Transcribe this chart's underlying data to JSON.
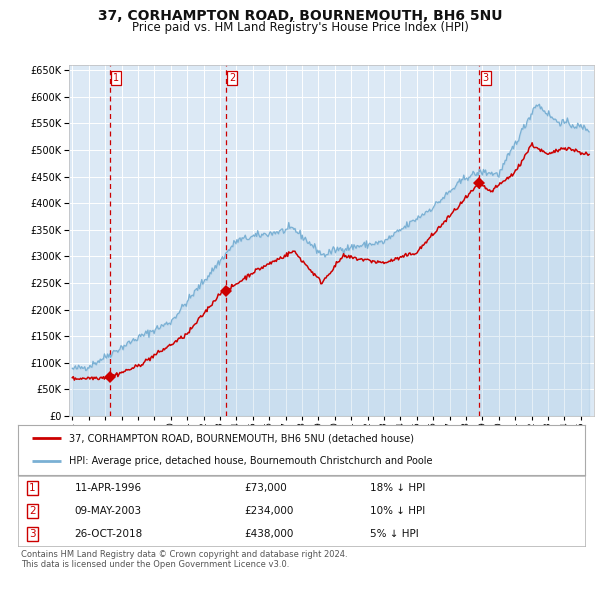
{
  "title": "37, CORHAMPTON ROAD, BOURNEMOUTH, BH6 5NU",
  "subtitle": "Price paid vs. HM Land Registry's House Price Index (HPI)",
  "title_fontsize": 10,
  "subtitle_fontsize": 8.5,
  "bg_color": "#dce9f5",
  "grid_color": "#ffffff",
  "purchases": [
    {
      "date_year": 1996.28,
      "price": 73000,
      "label": "1"
    },
    {
      "date_year": 2003.36,
      "price": 234000,
      "label": "2"
    },
    {
      "date_year": 2018.82,
      "price": 438000,
      "label": "3"
    }
  ],
  "vline_dates": [
    1996.28,
    2003.36,
    2018.82
  ],
  "vline_color": "#cc0000",
  "hpi_line_color": "#7ab0d4",
  "price_line_color": "#cc0000",
  "purchase_marker_color": "#cc0000",
  "ylim": [
    0,
    660000
  ],
  "ytick_step": 50000,
  "xlim_start": 1993.8,
  "xlim_end": 2025.8,
  "legend_entries": [
    "37, CORHAMPTON ROAD, BOURNEMOUTH, BH6 5NU (detached house)",
    "HPI: Average price, detached house, Bournemouth Christchurch and Poole"
  ],
  "table_rows": [
    {
      "num": "1",
      "date": "11-APR-1996",
      "price": "£73,000",
      "hpi": "18% ↓ HPI"
    },
    {
      "num": "2",
      "date": "09-MAY-2003",
      "price": "£234,000",
      "hpi": "10% ↓ HPI"
    },
    {
      "num": "3",
      "date": "26-OCT-2018",
      "price": "£438,000",
      "hpi": "5% ↓ HPI"
    }
  ],
  "footer": "Contains HM Land Registry data © Crown copyright and database right 2024.\nThis data is licensed under the Open Government Licence v3.0."
}
